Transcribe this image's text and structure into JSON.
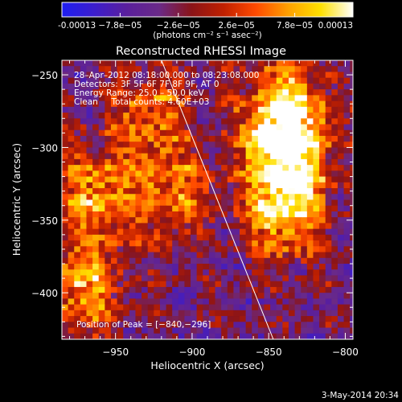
{
  "plot_title": "Reconstructed RHESSI Image",
  "colorbar": {
    "unit_label": "(photons cm⁻² s⁻¹ asec⁻²)",
    "min": -0.00013,
    "max": 0.00013,
    "tick_labels": [
      "-0.00013",
      "−7.8e−05",
      "−2.6e−05",
      "2.6e−05",
      "7.8e−05",
      "0.00013"
    ],
    "tick_values": [
      -0.00013,
      -7.8e-05,
      -2.6e-05,
      2.6e-05,
      7.8e-05,
      0.00013
    ],
    "colors": [
      "#1e1ef0",
      "#3c1ecc",
      "#5a1f9c",
      "#6a2a88",
      "#8a1418",
      "#c02000",
      "#ff4a00",
      "#ffa000",
      "#ffe000",
      "#ffffff"
    ]
  },
  "annotations": {
    "time_range": "28–Apr–2012 08:18:00.000 to 08:23:08.000",
    "detectors": "Detectors: 3F 5F 6F 7F 8F 9F, AT 0",
    "energy_range": "Energy Range: 25.0 – 50.0 keV",
    "clean_counts": "Clean     Total counts: 4.60E+03",
    "peak_position": "Position of Peak = [−840,−296]"
  },
  "footer_date": "3-May-2014 20:34",
  "chart_data": {
    "type": "heatmap",
    "title": "Reconstructed RHESSI Image",
    "xlabel": "Heliocentric X (arcsec)",
    "ylabel": "Heliocentric Y (arcsec)",
    "xlim": [
      -985,
      -795
    ],
    "ylim": [
      -432,
      -240
    ],
    "x_ticks": [
      -950,
      -900,
      -850,
      -800
    ],
    "y_ticks": [
      -250,
      -300,
      -350,
      -400
    ],
    "x_tick_labels": [
      "−950",
      "−900",
      "−850",
      "−800"
    ],
    "y_tick_labels": [
      "−250",
      "−300",
      "−350",
      "−400"
    ],
    "limb_line": [
      [
        -920,
        -240
      ],
      [
        -847,
        -432
      ]
    ],
    "peak": [
      -840,
      -296
    ],
    "value_range": [
      -0.00013,
      0.00013
    ],
    "bright_sources": [
      {
        "x": -842,
        "y": -275,
        "amplitude": 1.0
      },
      {
        "x": -840,
        "y": -310,
        "amplitude": 0.95
      },
      {
        "x": -843,
        "y": -345,
        "amplitude": 0.7
      },
      {
        "x": -965,
        "y": -330,
        "amplitude": 0.65
      },
      {
        "x": -975,
        "y": -395,
        "amplitude": 0.75
      },
      {
        "x": -930,
        "y": -275,
        "amplitude": 0.55
      },
      {
        "x": -915,
        "y": -330,
        "amplitude": 0.6
      }
    ]
  }
}
